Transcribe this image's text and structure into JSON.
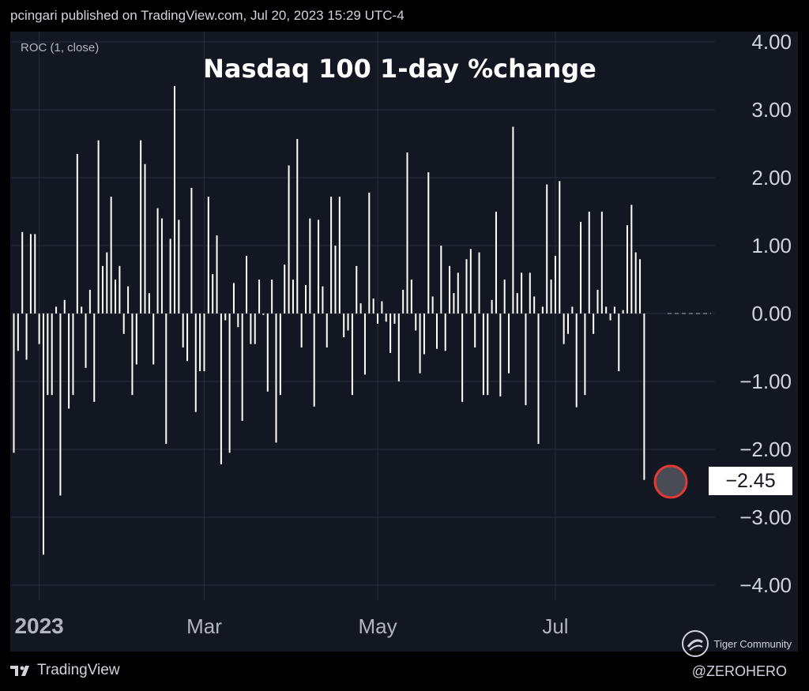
{
  "header": {
    "published": "pcingari published on TradingView.com, Jul 20, 2023 15:29 UTC-4"
  },
  "indicator": {
    "label": "ROC (1, close)"
  },
  "footer": {
    "brand": "TradingView",
    "watermark": "Tiger Community",
    "handle": "@ZEROHERO"
  },
  "colors": {
    "bar": "#ffffff",
    "background": "#131722",
    "grid": "#2a2e39",
    "marker": "#e53935"
  },
  "chart_data": {
    "type": "bar",
    "title": "Nasdaq 100 1-day %change",
    "y_ticks": [
      "4.00",
      "3.00",
      "2.00",
      "1.00",
      "0.00",
      "−1.00",
      "−2.00",
      "−3.00",
      "−4.00"
    ],
    "ylim": [
      -4,
      4
    ],
    "x_ticks": [
      {
        "label": "2023",
        "index": 6
      },
      {
        "label": "Mar",
        "index": 45
      },
      {
        "label": "May",
        "index": 86
      },
      {
        "label": "Jul",
        "index": 128
      }
    ],
    "last_value_label": "−2.45",
    "values": [
      -2.05,
      -0.55,
      1.2,
      -0.68,
      1.17,
      1.17,
      -0.45,
      -3.55,
      -1.2,
      -1.2,
      0.1,
      -2.68,
      0.2,
      -1.4,
      -1.2,
      2.35,
      0.1,
      -0.8,
      0.35,
      -1.3,
      2.55,
      0.7,
      0.9,
      1.72,
      0.5,
      0.7,
      -0.3,
      0.4,
      -1.2,
      -0.75,
      2.55,
      2.2,
      0.3,
      -0.75,
      1.55,
      1.4,
      -1.92,
      1.1,
      3.35,
      1.38,
      -0.5,
      -0.7,
      1.85,
      -1.45,
      -0.85,
      -0.85,
      1.72,
      0.58,
      1.15,
      -2.22,
      -0.1,
      -2.05,
      0.45,
      -0.2,
      -1.58,
      0.85,
      -0.45,
      -0.45,
      0.5,
      -0.02,
      -1.15,
      0.5,
      -1.9,
      -1.2,
      0.72,
      2.18,
      0.5,
      2.57,
      -0.5,
      0.42,
      1.4,
      -1.37,
      1.38,
      0.4,
      -0.5,
      1.72,
      1.0,
      1.72,
      -0.35,
      -0.25,
      -1.2,
      0.7,
      0.15,
      -0.9,
      1.78,
      0.22,
      -0.15,
      0.18,
      -0.12,
      -0.58,
      -0.15,
      -1.0,
      0.35,
      2.37,
      0.5,
      -0.25,
      -0.88,
      -0.6,
      2.08,
      0.25,
      -0.52,
      1.0,
      -0.55,
      0.7,
      0.3,
      0.6,
      -1.3,
      0.8,
      0.95,
      -0.5,
      0.9,
      -1.2,
      -1.2,
      0.2,
      1.5,
      -1.22,
      0.5,
      -0.88,
      2.75,
      0.3,
      0.6,
      -1.35,
      0.6,
      0.25,
      -1.92,
      0.1,
      1.9,
      0.5,
      0.85,
      1.95,
      -0.45,
      -0.3,
      0.1,
      -1.38,
      1.35,
      -1.2,
      1.5,
      -0.3,
      0.35,
      1.5,
      0.1,
      -0.1,
      0.1,
      -0.85,
      0.05,
      1.3,
      1.6,
      0.9,
      0.8,
      -2.45
    ]
  }
}
